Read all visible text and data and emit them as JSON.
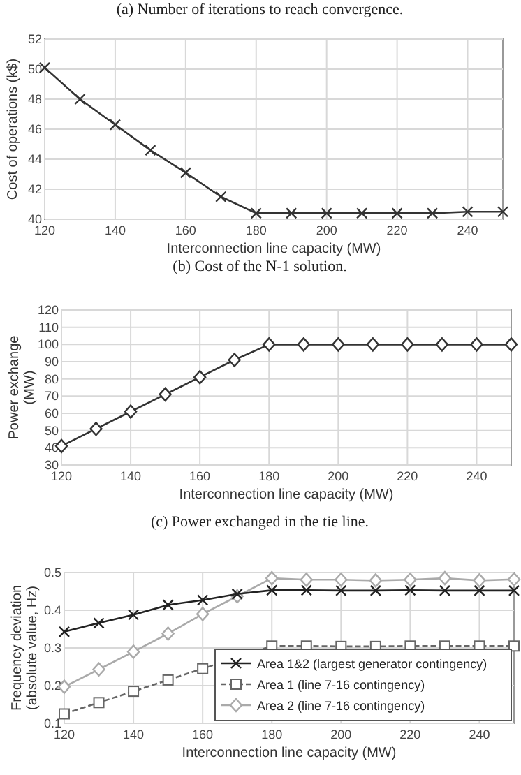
{
  "chart_data": [
    {
      "type": "line",
      "ylabel": "Cost of operations (k$)",
      "xlabel": "Interconnection line capacity (MW)",
      "annotations": [
        "(a) Number of iterations to reach convergence.",
        "(b) Cost of the N-1 solution."
      ],
      "x": [
        120,
        130,
        140,
        150,
        160,
        170,
        180,
        190,
        200,
        210,
        220,
        230,
        240,
        250
      ],
      "series": [
        {
          "color": "#333333",
          "marker": "cross",
          "values": [
            50.1,
            48.0,
            46.3,
            44.6,
            43.1,
            41.5,
            40.4,
            40.4,
            40.4,
            40.4,
            40.4,
            40.4,
            40.5,
            40.5
          ]
        }
      ],
      "xlim": [
        120,
        250
      ],
      "xticks": [
        120,
        140,
        160,
        180,
        200,
        220,
        240
      ],
      "ylim": [
        40,
        52
      ],
      "yticks": [
        40,
        42,
        44,
        46,
        48,
        50,
        52
      ],
      "grid": true
    },
    {
      "type": "line",
      "ylabel": "Power exchange\n(MW)",
      "xlabel": "Interconnection line capacity (MW)",
      "annotations": [
        "(c) Power exchanged in the tie line."
      ],
      "x": [
        120,
        130,
        140,
        150,
        160,
        170,
        180,
        190,
        200,
        210,
        220,
        230,
        240,
        250
      ],
      "series": [
        {
          "color": "#333333",
          "marker": "diamond",
          "values": [
            41,
            51,
            61,
            71,
            81,
            91,
            100,
            100,
            100,
            100,
            100,
            100,
            100,
            100
          ]
        }
      ],
      "xlim": [
        120,
        250
      ],
      "xticks": [
        120,
        140,
        160,
        180,
        200,
        220,
        240
      ],
      "ylim": [
        30,
        120
      ],
      "yticks": [
        30,
        40,
        50,
        60,
        70,
        80,
        90,
        100,
        110,
        120
      ],
      "grid": true
    },
    {
      "type": "line",
      "ylabel": "Frequency deviation\n(absolute value, Hz)",
      "xlabel": "Interconnection line capacity (MW)",
      "x": [
        120,
        130,
        140,
        150,
        160,
        170,
        180,
        190,
        200,
        210,
        220,
        230,
        240,
        250
      ],
      "series": [
        {
          "name": "Area 1&2 (largest generator contingency)",
          "color": "#222222",
          "marker": "cross",
          "line_style": "solid",
          "values": [
            0.343,
            0.366,
            0.388,
            0.414,
            0.427,
            0.443,
            0.453,
            0.453,
            0.452,
            0.452,
            0.453,
            0.452,
            0.452,
            0.452
          ]
        },
        {
          "name": "Area 1 (line 7-16 contingency)",
          "color": "#666666",
          "marker": "square",
          "line_style": "dashed",
          "values": [
            0.125,
            0.155,
            0.185,
            0.215,
            0.245,
            0.275,
            0.305,
            0.305,
            0.304,
            0.304,
            0.305,
            0.305,
            0.305,
            0.305
          ]
        },
        {
          "name": "Area 2 (line 7-16 contingency)",
          "color": "#aaaaaa",
          "marker": "diamond",
          "line_style": "solid",
          "values": [
            0.197,
            0.243,
            0.29,
            0.338,
            0.39,
            0.437,
            0.485,
            0.481,
            0.481,
            0.479,
            0.481,
            0.485,
            0.479,
            0.482
          ]
        }
      ],
      "xlim": [
        120,
        250
      ],
      "xticks": [
        120,
        140,
        160,
        180,
        200,
        220,
        240
      ],
      "ylim": [
        0.1,
        0.5
      ],
      "yticks": [
        0.1,
        0.2,
        0.3,
        0.4,
        0.5
      ],
      "grid": true,
      "legend": "bottom right"
    }
  ]
}
